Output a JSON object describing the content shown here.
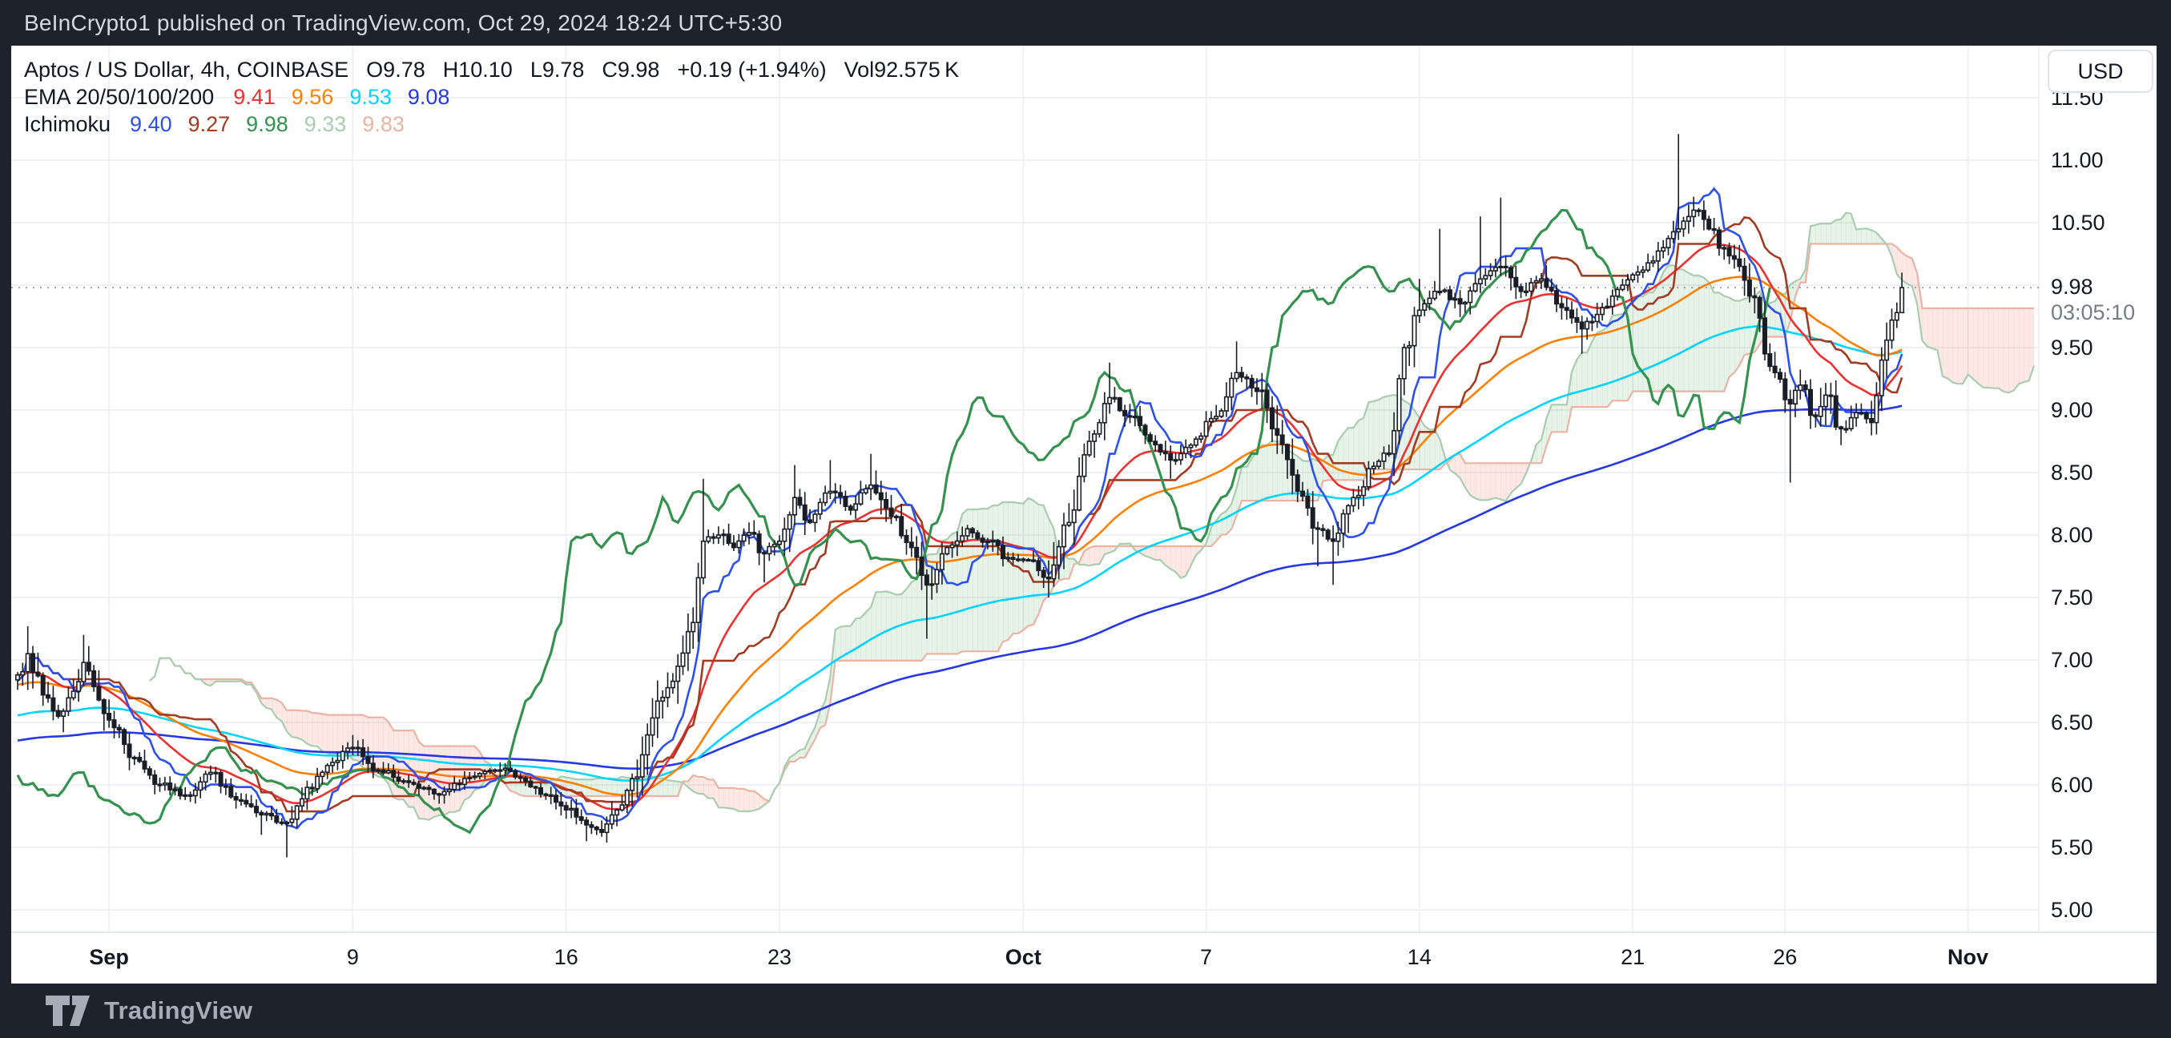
{
  "header": {
    "text": "BeInCrypto1 published on TradingView.com, Oct 29, 2024 18:24 UTC+5:30"
  },
  "footer": {
    "brand": "TradingView"
  },
  "legend": {
    "row1": {
      "tokens": [
        "Aptos / US Dollar, 4h, COINBASE",
        "O9.78",
        "H10.10",
        "L9.78",
        "C9.98",
        "+0.19 (+1.94%)",
        "Vol92.575 K"
      ]
    }
  },
  "axis": {
    "currency_button": "USD",
    "current_price": "9.98",
    "countdown": "03:05:10",
    "price_labels": [
      "11.50",
      "11.00",
      "10.50",
      "9.50",
      "9.00",
      "8.50",
      "8.00",
      "7.50",
      "7.00",
      "6.50",
      "6.00",
      "5.50",
      "5.00"
    ],
    "time_labels": [
      {
        "t": "Sep",
        "i": 18,
        "b": true
      },
      {
        "t": "9",
        "i": 66,
        "b": false
      },
      {
        "t": "16",
        "i": 108,
        "b": false
      },
      {
        "t": "23",
        "i": 150,
        "b": false
      },
      {
        "t": "Oct",
        "i": 198,
        "b": true
      },
      {
        "t": "7",
        "i": 234,
        "b": false
      },
      {
        "t": "14",
        "i": 276,
        "b": false
      },
      {
        "t": "21",
        "i": 318,
        "b": false
      },
      {
        "t": "26",
        "i": 348,
        "b": false
      },
      {
        "t": "Nov",
        "i": 384,
        "b": true
      }
    ]
  },
  "chart_data": {
    "type": "candlestick",
    "symbol": "Aptos / US Dollar",
    "timeframe": "4h",
    "exchange": "COINBASE",
    "last_candle": {
      "open": 9.78,
      "high": 10.1,
      "low": 9.78,
      "close": 9.98,
      "change": "+0.19",
      "change_pct": "+1.94%",
      "volume": "92.575 K"
    },
    "ylim": [
      4.95,
      11.55
    ],
    "price_tick_step": 0.5,
    "grid": true,
    "candles_per_day": 6,
    "num_candles": 372,
    "seed": 7,
    "price_anchors": [
      [
        0,
        6.88
      ],
      [
        2,
        7.05,
        7.27
      ],
      [
        5,
        6.72
      ],
      [
        8,
        6.55
      ],
      [
        11,
        6.75
      ],
      [
        13,
        6.98,
        7.2
      ],
      [
        16,
        6.68
      ],
      [
        18,
        6.52
      ],
      [
        23,
        6.22
      ],
      [
        28,
        6.0
      ],
      [
        33,
        5.92
      ],
      [
        38,
        6.1
      ],
      [
        43,
        5.88
      ],
      [
        48,
        5.76,
        null,
        5.6
      ],
      [
        53,
        5.7,
        null,
        5.42
      ],
      [
        57,
        5.98
      ],
      [
        62,
        6.18
      ],
      [
        66,
        6.3,
        6.4
      ],
      [
        71,
        6.12
      ],
      [
        77,
        6.02
      ],
      [
        83,
        5.92
      ],
      [
        89,
        6.06
      ],
      [
        95,
        6.12
      ],
      [
        100,
        6.03
      ],
      [
        104,
        5.92
      ],
      [
        108,
        5.8
      ],
      [
        112,
        5.68,
        null,
        5.55
      ],
      [
        115,
        5.62
      ],
      [
        118,
        5.8
      ],
      [
        121,
        6.05
      ],
      [
        124,
        6.4
      ],
      [
        127,
        6.7
      ],
      [
        130,
        6.95
      ],
      [
        133,
        7.3
      ],
      [
        135,
        7.95,
        8.45
      ],
      [
        138,
        8.0
      ],
      [
        141,
        7.9
      ],
      [
        144,
        8.02
      ],
      [
        147,
        7.85,
        null,
        7.62
      ],
      [
        150,
        7.95
      ],
      [
        153,
        8.3,
        8.56
      ],
      [
        156,
        8.1
      ],
      [
        160,
        8.35,
        8.6
      ],
      [
        164,
        8.2
      ],
      [
        168,
        8.4,
        8.65
      ],
      [
        172,
        8.15
      ],
      [
        176,
        7.9
      ],
      [
        179,
        7.6,
        null,
        7.17
      ],
      [
        183,
        7.9
      ],
      [
        187,
        8.05
      ],
      [
        191,
        7.95
      ],
      [
        195,
        7.82
      ],
      [
        199,
        7.8
      ],
      [
        203,
        7.65,
        null,
        7.5
      ],
      [
        207,
        8.1
      ],
      [
        211,
        8.75
      ],
      [
        215,
        9.1,
        9.38
      ],
      [
        219,
        8.95
      ],
      [
        223,
        8.75
      ],
      [
        227,
        8.6,
        null,
        8.45
      ],
      [
        231,
        8.72
      ],
      [
        236,
        8.95
      ],
      [
        240,
        9.3,
        9.55
      ],
      [
        244,
        9.15
      ],
      [
        248,
        8.8
      ],
      [
        252,
        8.35
      ],
      [
        256,
        8.05,
        null,
        7.75
      ],
      [
        259,
        7.95,
        null,
        7.6
      ],
      [
        263,
        8.3
      ],
      [
        267,
        8.55
      ],
      [
        270,
        8.65
      ],
      [
        273,
        9.5
      ],
      [
        276,
        9.8,
        10.05
      ],
      [
        280,
        9.95,
        10.45
      ],
      [
        284,
        9.85
      ],
      [
        288,
        10.05,
        10.55
      ],
      [
        292,
        10.15,
        10.7
      ],
      [
        296,
        9.95
      ],
      [
        300,
        10.05
      ],
      [
        304,
        9.82
      ],
      [
        308,
        9.65,
        null,
        9.45
      ],
      [
        312,
        9.82
      ],
      [
        316,
        10.0
      ],
      [
        320,
        10.12
      ],
      [
        324,
        10.3
      ],
      [
        327,
        10.45,
        11.21
      ],
      [
        330,
        10.6
      ],
      [
        333,
        10.45
      ],
      [
        336,
        10.3
      ],
      [
        339,
        10.15
      ],
      [
        342,
        9.9
      ],
      [
        344,
        9.45
      ],
      [
        346,
        9.3
      ],
      [
        349,
        9.05,
        null,
        8.42
      ],
      [
        351,
        9.2
      ],
      [
        354,
        8.95
      ],
      [
        356,
        9.12
      ],
      [
        359,
        8.85,
        null,
        8.72
      ],
      [
        362,
        8.98
      ],
      [
        365,
        8.9
      ],
      [
        367,
        9.4
      ],
      [
        369,
        9.72
      ],
      [
        370,
        9.78
      ],
      [
        371,
        9.98,
        10.1,
        9.78
      ]
    ],
    "indicators": {
      "ema": {
        "label": "EMA 20/50/100/200",
        "periods": [
          20,
          50,
          100,
          200
        ],
        "values": [
          "9.41",
          "9.56",
          "9.53",
          "9.08"
        ],
        "colors": [
          "#EF3030",
          "#FF8000",
          "#00D5FF",
          "#2637E8"
        ],
        "seeds": [
          6.88,
          6.8,
          6.55,
          6.35
        ]
      },
      "ichimoku": {
        "label": "Ichimoku",
        "params": {
          "conversion": 9,
          "base": 26,
          "span_b": 52,
          "displacement": 26
        },
        "values": [
          "9.40",
          "9.27",
          "9.98",
          "9.33",
          "9.83"
        ],
        "colors": [
          "#2C50F0",
          "#A23B22",
          "#35924E",
          "#A9CDAE",
          "#EBB3A3"
        ],
        "cloud": {
          "bull": "rgba(103,174,113,0.16)",
          "bear": "rgba(239,131,118,0.18)"
        }
      }
    },
    "style": {
      "bg_page": "#1E222D",
      "bg_canvas": "#FFFFFF",
      "grid": "#EFF1F6",
      "candle_up_fill": "#FFFFFF",
      "candle_down_fill": "#1A1D26",
      "candle_stroke": "#1A1D26",
      "price_line": "#787B86",
      "separator": "#E4E7ED"
    }
  }
}
